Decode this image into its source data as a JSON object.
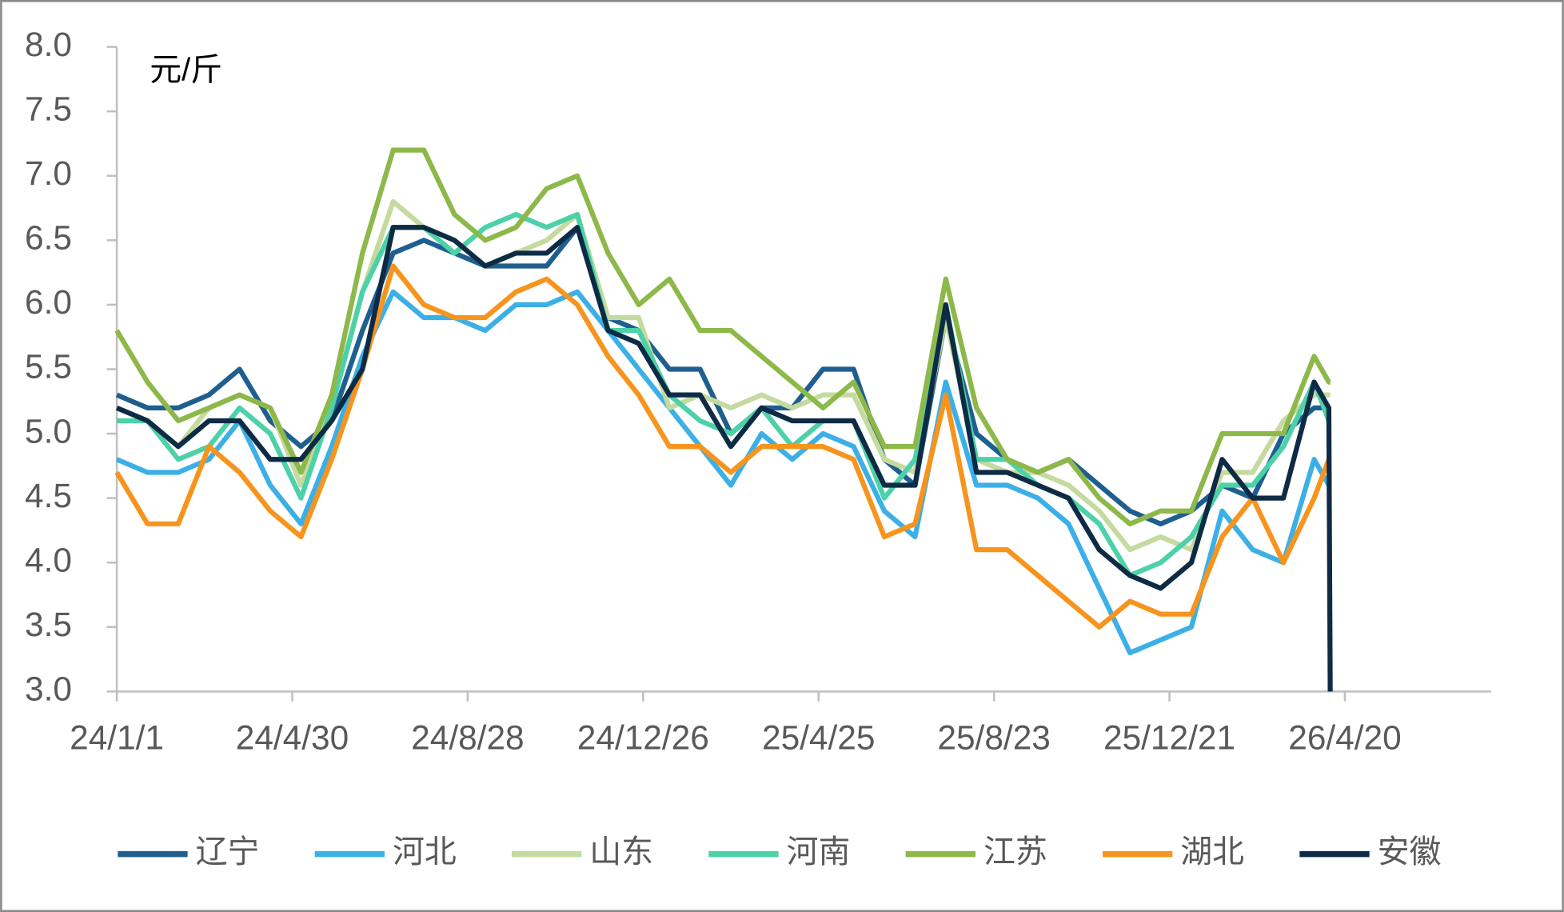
{
  "chart_data": {
    "type": "line",
    "y_label": "元/斤",
    "x": [
      "24/1/1",
      "24/1/22",
      "24/2/12",
      "24/3/4",
      "24/3/25",
      "24/4/15",
      "24/5/6",
      "24/5/27",
      "24/6/17",
      "24/7/8",
      "24/7/29",
      "24/8/19",
      "24/9/9",
      "24/9/30",
      "24/10/21",
      "24/11/11",
      "24/12/2",
      "24/12/23",
      "25/1/13",
      "25/2/3",
      "25/2/24",
      "25/3/17",
      "25/4/7",
      "25/4/28",
      "25/5/19",
      "25/6/9",
      "25/6/30",
      "25/7/21",
      "25/8/11",
      "25/9/1",
      "25/9/22",
      "25/10/13",
      "25/11/3",
      "25/11/24",
      "25/12/15",
      "26/1/5",
      "26/1/26",
      "26/2/16",
      "26/3/9",
      "26/3/30",
      "26/4/9",
      "26/4/10"
    ],
    "series": [
      {
        "name": "辽宁",
        "color": "#1f5f8f",
        "values": [
          5.3,
          5.2,
          5.2,
          5.3,
          5.5,
          5.1,
          4.9,
          5.1,
          5.8,
          6.4,
          6.5,
          6.4,
          6.3,
          6.3,
          6.3,
          6.6,
          5.9,
          5.8,
          5.5,
          5.5,
          5.0,
          5.2,
          5.2,
          5.5,
          5.5,
          4.8,
          4.6,
          5.9,
          5.0,
          4.8,
          4.7,
          4.8,
          4.6,
          4.4,
          4.3,
          4.4,
          4.6,
          4.5,
          5.0,
          5.2,
          5.2,
          5.2
        ]
      },
      {
        "name": "河北",
        "color": "#3cb0e6",
        "values": [
          4.8,
          4.7,
          4.7,
          4.8,
          5.1,
          4.6,
          4.3,
          4.9,
          5.6,
          6.1,
          5.9,
          5.9,
          5.8,
          6.0,
          6.0,
          6.1,
          5.8,
          5.5,
          5.2,
          4.9,
          4.6,
          5.0,
          4.8,
          5.0,
          4.9,
          4.4,
          4.2,
          5.4,
          4.6,
          4.6,
          4.5,
          4.3,
          3.8,
          3.3,
          3.4,
          3.5,
          4.4,
          4.1,
          4.0,
          4.8,
          4.6,
          4.6
        ]
      },
      {
        "name": "山东",
        "color": "#c5da9e",
        "values": [
          5.2,
          5.1,
          4.9,
          5.2,
          5.3,
          5.2,
          4.6,
          5.2,
          6.1,
          6.8,
          6.6,
          6.5,
          6.3,
          6.4,
          6.5,
          6.7,
          5.9,
          5.9,
          5.2,
          5.3,
          5.2,
          5.3,
          5.2,
          5.3,
          5.3,
          4.8,
          4.7,
          5.9,
          4.8,
          4.7,
          4.7,
          4.6,
          4.4,
          4.1,
          4.2,
          4.1,
          4.7,
          4.7,
          5.1,
          5.3,
          5.3,
          5.3
        ]
      },
      {
        "name": "河南",
        "color": "#4cd1a8",
        "values": [
          5.1,
          5.1,
          4.8,
          4.9,
          5.2,
          5.0,
          4.5,
          5.2,
          6.1,
          6.6,
          6.6,
          6.4,
          6.6,
          6.7,
          6.6,
          6.7,
          5.8,
          5.8,
          5.3,
          5.1,
          5.0,
          5.2,
          4.9,
          5.1,
          5.1,
          4.5,
          4.8,
          6.0,
          4.8,
          4.8,
          4.6,
          4.5,
          4.3,
          3.9,
          4.0,
          4.2,
          4.6,
          4.6,
          4.9,
          5.4,
          5.1,
          5.1
        ]
      },
      {
        "name": "江苏",
        "color": "#8db84a",
        "values": [
          5.8,
          5.4,
          5.1,
          5.2,
          5.3,
          5.2,
          4.7,
          5.3,
          6.4,
          7.2,
          7.2,
          6.7,
          6.5,
          6.6,
          6.9,
          7.0,
          6.4,
          6.0,
          6.2,
          5.8,
          5.8,
          5.6,
          5.4,
          5.2,
          5.4,
          4.9,
          4.9,
          6.2,
          5.2,
          4.8,
          4.7,
          4.8,
          4.5,
          4.3,
          4.4,
          4.4,
          5.0,
          5.0,
          5.0,
          5.6,
          5.4,
          5.4
        ]
      },
      {
        "name": "湖北",
        "color": "#f7941d",
        "values": [
          4.7,
          4.3,
          4.3,
          4.9,
          4.7,
          4.4,
          4.2,
          4.8,
          5.5,
          6.3,
          6.0,
          5.9,
          5.9,
          6.1,
          6.2,
          6.0,
          5.6,
          5.3,
          4.9,
          4.9,
          4.7,
          4.9,
          4.9,
          4.9,
          4.8,
          4.2,
          4.3,
          5.3,
          4.1,
          4.1,
          3.9,
          3.7,
          3.5,
          3.7,
          3.6,
          3.6,
          4.2,
          4.5,
          4.0,
          4.5,
          4.8,
          4.8
        ]
      },
      {
        "name": "安徽",
        "color": "#0d2b45",
        "values": [
          5.2,
          5.1,
          4.9,
          5.1,
          5.1,
          4.8,
          4.8,
          5.1,
          5.5,
          6.6,
          6.6,
          6.5,
          6.3,
          6.4,
          6.4,
          6.6,
          5.8,
          5.7,
          5.3,
          5.3,
          4.9,
          5.2,
          5.1,
          5.1,
          5.1,
          4.6,
          4.6,
          6.0,
          4.7,
          4.7,
          4.6,
          4.5,
          4.1,
          3.9,
          3.8,
          4.0,
          4.8,
          4.5,
          4.5,
          5.4,
          5.2,
          3.0
        ]
      }
    ],
    "xlim": [
      "24/1/1",
      "26/7/29"
    ],
    "xticks": [
      "24/1/1",
      "24/4/30",
      "24/8/28",
      "24/12/26",
      "25/4/25",
      "25/8/23",
      "25/12/21",
      "26/4/20"
    ],
    "ylim": [
      3.0,
      8.0
    ],
    "yticks": [
      {
        "value": 3,
        "label": "3.0"
      },
      {
        "value": 3.5,
        "label": "3.5"
      },
      {
        "value": 4,
        "label": "4.0"
      },
      {
        "value": 4.5,
        "label": "4.5"
      },
      {
        "value": 5,
        "label": "5.0"
      },
      {
        "value": 5.5,
        "label": "5.5"
      },
      {
        "value": 6,
        "label": "6.0"
      },
      {
        "value": 6.5,
        "label": "6.5"
      },
      {
        "value": 7,
        "label": "7.0"
      },
      {
        "value": 7.5,
        "label": "7.5"
      },
      {
        "value": 8,
        "label": "8.0"
      }
    ],
    "legend": "bottom"
  }
}
